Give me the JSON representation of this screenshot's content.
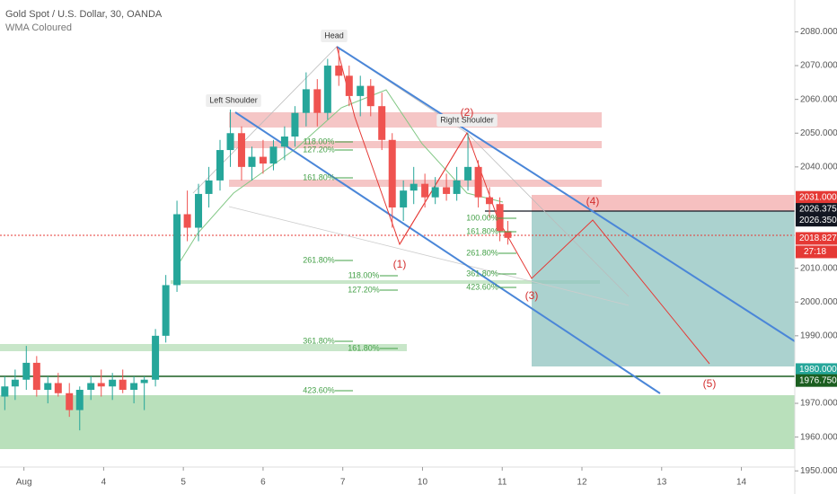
{
  "chart_data": {
    "type": "candlestick",
    "title": "Gold Spot / U.S. Dollar, 30, OANDA",
    "subtitle": "WMA Coloured",
    "x": [
      -0.24,
      -0.11,
      0.03,
      0.16,
      0.3,
      0.43,
      0.57,
      0.7,
      0.84,
      0.97,
      1.11,
      1.24,
      1.38,
      1.51,
      1.65,
      1.78,
      1.92,
      2.05,
      2.19,
      2.32,
      2.46,
      2.59,
      2.73,
      2.86,
      3.0,
      3.13,
      3.27,
      3.4,
      3.54,
      3.68,
      3.81,
      3.95,
      4.08,
      4.22,
      4.35,
      4.49,
      4.62,
      4.76,
      4.89,
      5.03,
      5.16,
      5.3,
      5.43,
      5.57,
      5.7,
      5.84,
      5.97,
      6.07
    ],
    "open": [
      1972,
      1975,
      1977,
      1982,
      1974,
      1976,
      1973,
      1968,
      1974,
      1976,
      1975,
      1977,
      1974,
      1976,
      1977,
      1990,
      2005,
      2026,
      2022,
      2032,
      2036,
      2045,
      2050,
      2040,
      2043,
      2041,
      2046,
      2049,
      2056,
      2063,
      2056,
      2070,
      2067,
      2061,
      2064,
      2058,
      2048,
      2028,
      2033,
      2035,
      2031,
      2034,
      2032,
      2036,
      2040,
      2031,
      2029,
      2021
    ],
    "high": [
      1978,
      1980,
      1987,
      1984,
      1978,
      1979,
      1976,
      1975,
      1978,
      1980,
      1979,
      1980,
      1978,
      1978,
      1992,
      2008,
      2030,
      2033,
      2035,
      2040,
      2048,
      2057,
      2052,
      2046,
      2048,
      2048,
      2052,
      2058,
      2068,
      2066,
      2072,
      2075,
      2070,
      2067,
      2066,
      2062,
      2050,
      2036,
      2040,
      2038,
      2037,
      2038,
      2040,
      2050,
      2042,
      2034,
      2031,
      2024
    ],
    "low": [
      1968,
      1971,
      1974,
      1972,
      1970,
      1972,
      1966,
      1962,
      1971,
      1972,
      1971,
      1973,
      1970,
      1968,
      1975,
      1988,
      2003,
      2018,
      2018,
      2028,
      2033,
      2040,
      2036,
      2036,
      2038,
      2039,
      2042,
      2046,
      2052,
      2052,
      2054,
      2064,
      2058,
      2055,
      2055,
      2045,
      2022,
      2024,
      2029,
      2028,
      2029,
      2030,
      2030,
      2033,
      2028,
      2025,
      2018,
      2017
    ],
    "close": [
      1975,
      1977,
      1982,
      1974,
      1976,
      1973,
      1968,
      1974,
      1976,
      1975,
      1977,
      1974,
      1976,
      1977,
      1990,
      2005,
      2026,
      2022,
      2032,
      2036,
      2045,
      2050,
      2040,
      2043,
      2041,
      2046,
      2049,
      2056,
      2063,
      2056,
      2070,
      2067,
      2061,
      2064,
      2058,
      2048,
      2028,
      2033,
      2035,
      2031,
      2034,
      2032,
      2036,
      2040,
      2031,
      2029,
      2021,
      2019
    ],
    "up_color": "#26a69a",
    "down_color": "#ef5350",
    "xlim": [
      -0.3,
      9.67
    ],
    "xticks": [
      {
        "value": 0,
        "label": "Aug"
      },
      {
        "value": 1,
        "label": "4"
      },
      {
        "value": 2,
        "label": "5"
      },
      {
        "value": 3,
        "label": "6"
      },
      {
        "value": 4,
        "label": "7"
      },
      {
        "value": 5,
        "label": "10"
      },
      {
        "value": 6,
        "label": "11"
      },
      {
        "value": 7,
        "label": "12"
      },
      {
        "value": 8,
        "label": "13"
      },
      {
        "value": 9,
        "label": "14"
      }
    ],
    "ylim": [
      1951.13,
      2089.43
    ],
    "yticks": [
      {
        "value": 2080,
        "label": "2080.000"
      },
      {
        "value": 2070,
        "label": "2070.000"
      },
      {
        "value": 2060,
        "label": "2060.000"
      },
      {
        "value": 2050,
        "label": "2050.000"
      },
      {
        "value": 2040,
        "label": "2040.000"
      },
      {
        "value": 2010,
        "label": "2010.000"
      },
      {
        "value": 2000,
        "label": "2000.000"
      },
      {
        "value": 1990,
        "label": "1990.000"
      },
      {
        "value": 1970,
        "label": "1970.000"
      },
      {
        "value": 1960,
        "label": "1960.000"
      },
      {
        "value": 1950,
        "label": "1950.000"
      }
    ],
    "price_labels": [
      {
        "value": 2031,
        "label": "2031.000",
        "color": "#e53935"
      },
      {
        "value": 2026.375,
        "label": "2026.375",
        "color": "#131722"
      },
      {
        "value": 2026.35,
        "label": "2026.350",
        "color": "#131722"
      },
      {
        "value": 2018.827,
        "label": "2018.827",
        "color": "#e53935"
      },
      {
        "value": 1980,
        "label": "1980.000",
        "color": "#26a69a"
      },
      {
        "value": 1976.75,
        "label": "1976.750",
        "color": "#1b5e20"
      }
    ],
    "countdown": "27:18",
    "annotations": [
      "Head",
      "Left Shoulder",
      "Right Shoulder",
      "(1)",
      "(2)",
      "(3)",
      "(4)",
      "(5)",
      "118.00%",
      "127.20%",
      "161.80%",
      "261.80%",
      "118.00%",
      "127.20%",
      "361.80%",
      "161.80%",
      "423.60%",
      "100.00%",
      "161.80%",
      "261.80%",
      "361.80%",
      "423.60%"
    ]
  }
}
